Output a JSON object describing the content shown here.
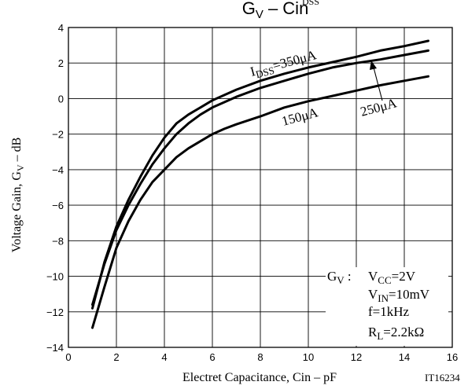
{
  "chart_data": {
    "type": "line",
    "title_main": "G",
    "title_sub": "V",
    "title_rest": " – Cin",
    "title_clipped": "DSS",
    "xlabel": "Electret Capacitance, Cin  –  pF",
    "ylabel_main": "Voltage Gain, G",
    "ylabel_sub": "V",
    "ylabel_rest": "  –  dB",
    "xlim": [
      0,
      16
    ],
    "ylim": [
      -14,
      4
    ],
    "xticks": [
      "0",
      "2",
      "4",
      "6",
      "8",
      "10",
      "12",
      "14",
      "16"
    ],
    "yticks": [
      "4",
      "2",
      "0",
      "−2",
      "−4",
      "−6",
      "−8",
      "−10",
      "−12",
      "−14"
    ],
    "grid": true,
    "series": [
      {
        "name": "350μA",
        "x": [
          1,
          1.5,
          2,
          2.5,
          3,
          3.5,
          4,
          4.5,
          5,
          5.5,
          6,
          6.5,
          7,
          8,
          9,
          10,
          11,
          12,
          13,
          14,
          15
        ],
        "y": [
          -11.8,
          -9.2,
          -7.2,
          -5.7,
          -4.4,
          -3.2,
          -2.2,
          -1.4,
          -0.9,
          -0.5,
          -0.1,
          0.2,
          0.5,
          1.0,
          1.4,
          1.75,
          2.05,
          2.35,
          2.7,
          2.95,
          3.25
        ]
      },
      {
        "name": "250μA",
        "x": [
          1,
          1.5,
          2,
          2.5,
          3,
          3.5,
          4,
          4.5,
          5,
          5.5,
          6,
          6.5,
          7,
          8,
          9,
          10,
          11,
          12,
          13,
          14,
          15
        ],
        "y": [
          -11.6,
          -9.3,
          -7.4,
          -6.0,
          -4.8,
          -3.7,
          -2.8,
          -2.0,
          -1.4,
          -0.9,
          -0.5,
          -0.2,
          0.1,
          0.6,
          1.0,
          1.4,
          1.75,
          2.0,
          2.2,
          2.45,
          2.7
        ]
      },
      {
        "name": "150μA",
        "x": [
          1,
          1.5,
          2,
          2.5,
          3,
          3.5,
          4,
          4.5,
          5,
          5.5,
          6,
          6.5,
          7,
          8,
          9,
          10,
          11,
          12,
          13,
          14,
          15
        ],
        "y": [
          -12.9,
          -10.6,
          -8.4,
          -6.9,
          -5.7,
          -4.7,
          -4.0,
          -3.3,
          -2.8,
          -2.4,
          -2.0,
          -1.7,
          -1.45,
          -1.0,
          -0.5,
          -0.15,
          0.15,
          0.45,
          0.75,
          1.0,
          1.25
        ]
      }
    ],
    "annotations": {
      "idss_350": {
        "pre": "I",
        "sub": "DSS",
        "post": "=350μA"
      },
      "label_250": "250μA",
      "label_150": "150μA"
    },
    "conditions": {
      "gv_main": "G",
      "gv_sub": "V",
      "gv_colon": " :",
      "vcc_main": "V",
      "vcc_sub": "CC",
      "vcc_val": "=2V",
      "vin_main": "V",
      "vin_sub": "IN",
      "vin_val": "=10mV",
      "f": "f=1kHz",
      "rl_main": "R",
      "rl_sub": "L",
      "rl_val": "=2.2kΩ"
    },
    "figure_id": "IT16234"
  },
  "colors": {
    "line": "#000000",
    "grid": "#000000",
    "background": "#ffffff"
  }
}
